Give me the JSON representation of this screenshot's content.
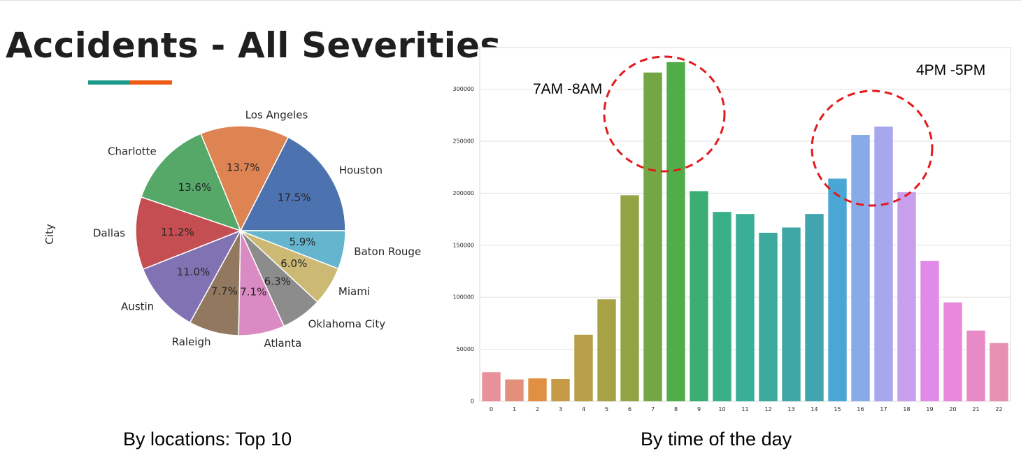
{
  "title": "Accidents - All Severities",
  "accent_colors": [
    "#1a9a8a",
    "#ee5a12"
  ],
  "captions": {
    "left": "By locations: Top 10",
    "right": "By time of the day"
  },
  "chart_data": [
    {
      "type": "pie",
      "ylabel": "City",
      "labels": [
        "Houston",
        "Los Angeles",
        "Charlotte",
        "Dallas",
        "Austin",
        "Raleigh",
        "Atlanta",
        "Oklahoma City",
        "Miami",
        "Baton Rouge"
      ],
      "values": [
        17.5,
        13.7,
        13.6,
        11.2,
        11.0,
        7.7,
        7.1,
        6.3,
        6.0,
        5.9
      ],
      "pct_labels": [
        "17.5%",
        "13.7%",
        "13.6%",
        "11.2%",
        "11.0%",
        "7.7%",
        "7.1%",
        "6.3%",
        "6.0%",
        "5.9%"
      ],
      "colors": [
        "#4c72b0",
        "#dd8452",
        "#55a868",
        "#c44e52",
        "#8172b3",
        "#937860",
        "#da8bc3",
        "#8c8c8c",
        "#ccb974",
        "#64b5cd"
      ]
    },
    {
      "type": "bar",
      "categories": [
        "0",
        "1",
        "2",
        "3",
        "4",
        "5",
        "6",
        "7",
        "8",
        "9",
        "10",
        "11",
        "12",
        "13",
        "14",
        "15",
        "16",
        "17",
        "18",
        "19",
        "20",
        "21",
        "22"
      ],
      "values": [
        28000,
        21000,
        22000,
        21500,
        64000,
        98000,
        198000,
        316000,
        326000,
        202000,
        182000,
        180000,
        162000,
        167000,
        180000,
        214000,
        256000,
        264000,
        201000,
        135000,
        95000,
        68000,
        56000
      ],
      "ylim": [
        0,
        340000
      ],
      "yticks": [
        0,
        50000,
        100000,
        150000,
        200000,
        250000,
        300000
      ],
      "grid": true,
      "colors": [
        "#e8919a",
        "#e48f7c",
        "#e09040",
        "#c79a48",
        "#b79e48",
        "#a7a344",
        "#93a444",
        "#75a644",
        "#50ad4a",
        "#3cae74",
        "#3ab089",
        "#3bae98",
        "#3da99d",
        "#3ea7a5",
        "#40a5ae",
        "#4aa6d4",
        "#87abe8",
        "#a6a7ec",
        "#c79fec",
        "#e08be8",
        "#e887dc",
        "#e78ac6",
        "#e890b2"
      ],
      "annotations": [
        {
          "text": "7AM -8AM",
          "near": "top-left"
        },
        {
          "text": "4PM -5PM",
          "near": "top-right"
        }
      ]
    }
  ]
}
